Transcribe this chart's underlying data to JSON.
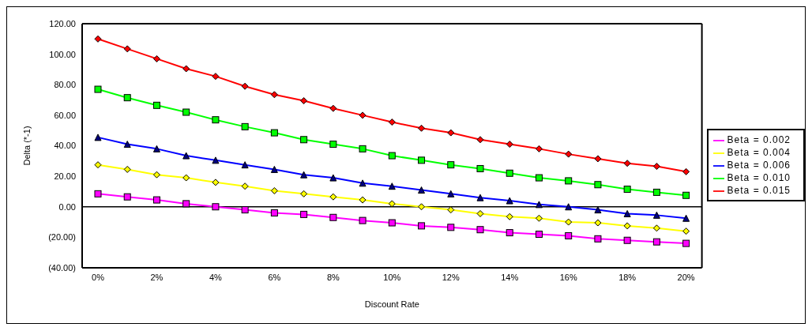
{
  "chart_data": {
    "type": "line",
    "xlabel": "Discount Rate",
    "ylabel": "Delta (*-1)",
    "categories": [
      "0%",
      null,
      "2%",
      null,
      "4%",
      null,
      "6%",
      null,
      "8%",
      null,
      "10%",
      null,
      "12%",
      null,
      "14%",
      null,
      "16%",
      null,
      "18%",
      null,
      "20%"
    ],
    "series": [
      {
        "name": "Beta = 0.002",
        "color": "#ff00ff",
        "marker": "square",
        "values": [
          8.5,
          6.5,
          4.5,
          2,
          0,
          -2,
          -4,
          -5,
          -7,
          -9,
          -10.5,
          -12.5,
          -13.5,
          -15,
          -17,
          -18,
          -19,
          -21,
          -22,
          -23,
          -24
        ]
      },
      {
        "name": "Beta = 0.004",
        "color": "#ffff00",
        "marker": "diamond",
        "values": [
          27.5,
          24.5,
          21,
          19,
          16,
          13.5,
          10.5,
          8.5,
          6.5,
          4.5,
          2,
          0,
          -2,
          -4.5,
          -6.5,
          -7.5,
          -10,
          -10.5,
          -12.5,
          -14,
          -16
        ]
      },
      {
        "name": "Beta = 0.006",
        "color": "#0000ff",
        "marker": "triangle",
        "values": [
          45.5,
          41,
          38,
          33.5,
          30.5,
          27.5,
          24.5,
          21,
          19,
          15.5,
          13.5,
          11,
          8.5,
          6,
          4,
          1.5,
          0,
          -2,
          -4.5,
          -5.5,
          -7.5
        ]
      },
      {
        "name": "Beta = 0.010",
        "color": "#00ff00",
        "marker": "square",
        "values": [
          77,
          71.5,
          66.5,
          62,
          57,
          52.5,
          48.5,
          44,
          41,
          38,
          33.5,
          30.5,
          27.5,
          25,
          22,
          19,
          17,
          14.5,
          11.5,
          9.5,
          7.5
        ]
      },
      {
        "name": "Beta = 0.015",
        "color": "#ff0000",
        "marker": "diamond",
        "values": [
          110,
          103.5,
          97,
          90.5,
          85.5,
          79,
          73.5,
          69.5,
          64.5,
          60,
          55.5,
          51.5,
          48.5,
          44,
          41,
          38,
          34.5,
          31.5,
          28.5,
          26.5,
          23
        ]
      }
    ],
    "ylim": [
      -40,
      120
    ],
    "yticks": [
      {
        "value": -40,
        "label": "(40.00)"
      },
      {
        "value": -20,
        "label": "(20.00)"
      },
      {
        "value": 0,
        "label": "0.00"
      },
      {
        "value": 20,
        "label": "20.00"
      },
      {
        "value": 40,
        "label": "40.00"
      },
      {
        "value": 60,
        "label": "60.00"
      },
      {
        "value": 80,
        "label": "80.00"
      },
      {
        "value": 100,
        "label": "100.00"
      },
      {
        "value": 120,
        "label": "120.00"
      }
    ],
    "ref_lines": [
      {
        "axis": "y",
        "value": 0,
        "color": "#000000"
      }
    ],
    "grid": false,
    "legend": "right",
    "line_style": "solid"
  }
}
